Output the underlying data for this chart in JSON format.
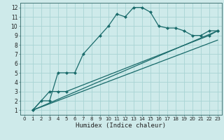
{
  "title": "",
  "xlabel": "Humidex (Indice chaleur)",
  "ylabel": "",
  "background_color": "#ceeaea",
  "line_color": "#1a6b6b",
  "grid_color": "#a8d4d4",
  "ylim": [
    0.5,
    12.5
  ],
  "xlim": [
    -0.5,
    23.5
  ],
  "yticks": [
    1,
    2,
    3,
    4,
    5,
    6,
    7,
    8,
    9,
    10,
    11,
    12
  ],
  "xticks": [
    0,
    1,
    2,
    3,
    4,
    5,
    6,
    7,
    8,
    9,
    10,
    11,
    12,
    13,
    14,
    15,
    16,
    17,
    18,
    19,
    20,
    21,
    22,
    23
  ],
  "curve1_x": [
    1,
    2,
    3,
    4,
    5,
    6,
    7,
    9,
    10,
    11,
    12,
    13,
    14,
    15,
    16,
    17,
    18,
    19,
    20,
    21,
    22,
    23
  ],
  "curve1_y": [
    1,
    2,
    2,
    5,
    5,
    5,
    7,
    9,
    10,
    11.3,
    11,
    12,
    12,
    11.5,
    10,
    9.8,
    9.8,
    9.5,
    9,
    9,
    9.5,
    9.5
  ],
  "curve2_x": [
    1,
    3,
    4,
    5,
    22,
    23
  ],
  "curve2_y": [
    1,
    3,
    3,
    3,
    9,
    9.5
  ],
  "curve3_x": [
    1,
    23
  ],
  "curve3_y": [
    1,
    8.5
  ],
  "curve4_x": [
    1,
    23
  ],
  "curve4_y": [
    1,
    9.5
  ],
  "marker_size": 2.5,
  "line_width": 0.9,
  "xlabel_fontsize": 6.5,
  "tick_fontsize_x": 5,
  "tick_fontsize_y": 5.5
}
